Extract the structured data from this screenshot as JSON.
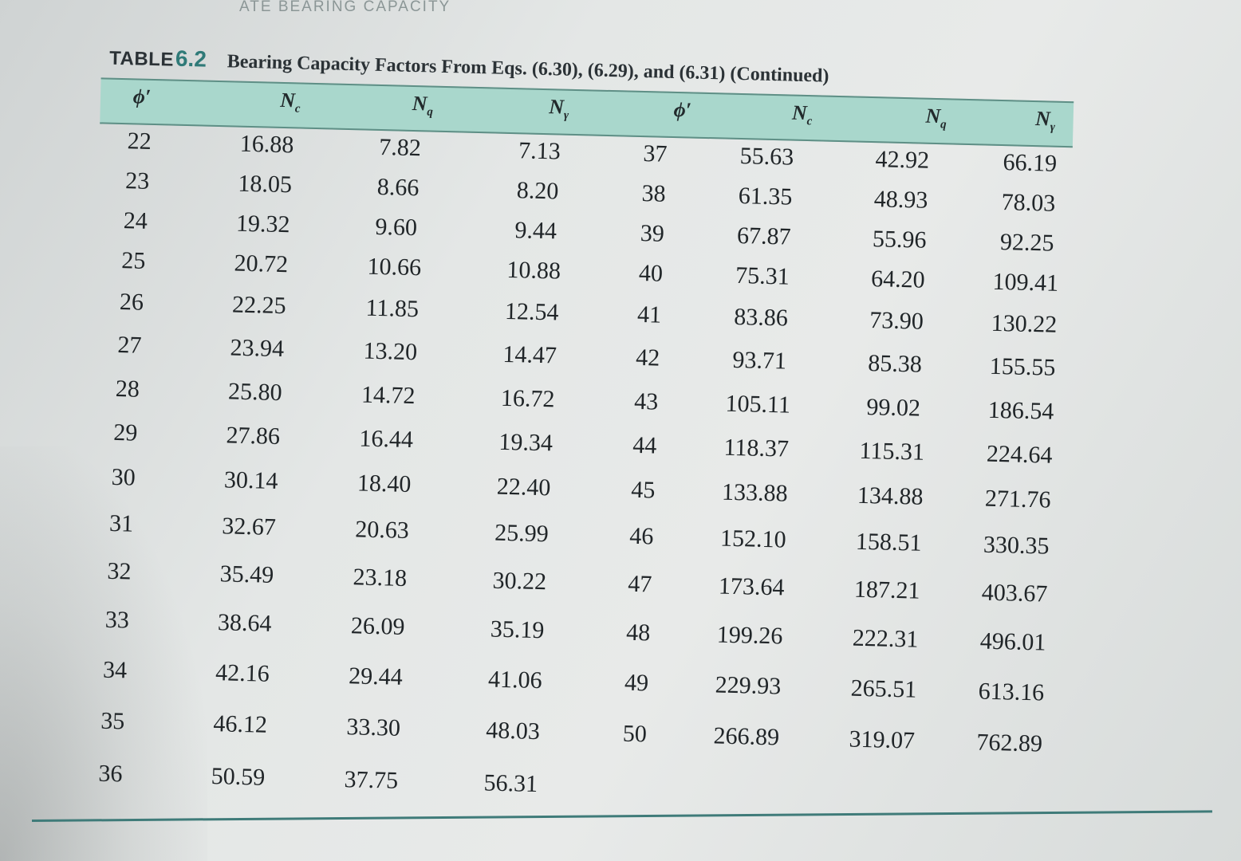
{
  "running_head": "ATE BEARING CAPACITY",
  "caption": {
    "label": "TABLE",
    "number": "6.2",
    "text": "Bearing Capacity Factors From Eqs. (6.30), (6.29), and (6.31) (Continued)"
  },
  "headers": {
    "left": {
      "phi": "ϕ′",
      "nc": "N",
      "nc_sub": "c",
      "nq": "N",
      "nq_sub": "q",
      "ng": "N",
      "ng_sub": "γ"
    },
    "right": {
      "phi": "ϕ′",
      "nc": "N",
      "nc_sub": "c",
      "nq": "N",
      "nq_sub": "q",
      "ng": "N",
      "ng_sub": "γ"
    }
  },
  "rows": [
    {
      "phi": "22",
      "nc": "16.88",
      "nq": "7.82",
      "ng": "7.13",
      "phi2": "37",
      "nc2": "55.63",
      "nq2": "42.92",
      "ng2": "66.19"
    },
    {
      "phi": "23",
      "nc": "18.05",
      "nq": "8.66",
      "ng": "8.20",
      "phi2": "38",
      "nc2": "61.35",
      "nq2": "48.93",
      "ng2": "78.03"
    },
    {
      "phi": "24",
      "nc": "19.32",
      "nq": "9.60",
      "ng": "9.44",
      "phi2": "39",
      "nc2": "67.87",
      "nq2": "55.96",
      "ng2": "92.25"
    },
    {
      "phi": "25",
      "nc": "20.72",
      "nq": "10.66",
      "ng": "10.88",
      "phi2": "40",
      "nc2": "75.31",
      "nq2": "64.20",
      "ng2": "109.41"
    },
    {
      "phi": "26",
      "nc": "22.25",
      "nq": "11.85",
      "ng": "12.54",
      "phi2": "41",
      "nc2": "83.86",
      "nq2": "73.90",
      "ng2": "130.22"
    },
    {
      "phi": "27",
      "nc": "23.94",
      "nq": "13.20",
      "ng": "14.47",
      "phi2": "42",
      "nc2": "93.71",
      "nq2": "85.38",
      "ng2": "155.55"
    },
    {
      "phi": "28",
      "nc": "25.80",
      "nq": "14.72",
      "ng": "16.72",
      "phi2": "43",
      "nc2": "105.11",
      "nq2": "99.02",
      "ng2": "186.54"
    },
    {
      "phi": "29",
      "nc": "27.86",
      "nq": "16.44",
      "ng": "19.34",
      "phi2": "44",
      "nc2": "118.37",
      "nq2": "115.31",
      "ng2": "224.64"
    },
    {
      "phi": "30",
      "nc": "30.14",
      "nq": "18.40",
      "ng": "22.40",
      "phi2": "45",
      "nc2": "133.88",
      "nq2": "134.88",
      "ng2": "271.76"
    },
    {
      "phi": "31",
      "nc": "32.67",
      "nq": "20.63",
      "ng": "25.99",
      "phi2": "46",
      "nc2": "152.10",
      "nq2": "158.51",
      "ng2": "330.35"
    },
    {
      "phi": "32",
      "nc": "35.49",
      "nq": "23.18",
      "ng": "30.22",
      "phi2": "47",
      "nc2": "173.64",
      "nq2": "187.21",
      "ng2": "403.67"
    },
    {
      "phi": "33",
      "nc": "38.64",
      "nq": "26.09",
      "ng": "35.19",
      "phi2": "48",
      "nc2": "199.26",
      "nq2": "222.31",
      "ng2": "496.01"
    },
    {
      "phi": "34",
      "nc": "42.16",
      "nq": "29.44",
      "ng": "41.06",
      "phi2": "49",
      "nc2": "229.93",
      "nq2": "265.51",
      "ng2": "613.16"
    },
    {
      "phi": "35",
      "nc": "46.12",
      "nq": "33.30",
      "ng": "48.03",
      "phi2": "50",
      "nc2": "266.89",
      "nq2": "319.07",
      "ng2": "762.89"
    },
    {
      "phi": "36",
      "nc": "50.59",
      "nq": "37.75",
      "ng": "56.31",
      "phi2": "",
      "nc2": "",
      "nq2": "",
      "ng2": ""
    }
  ]
}
